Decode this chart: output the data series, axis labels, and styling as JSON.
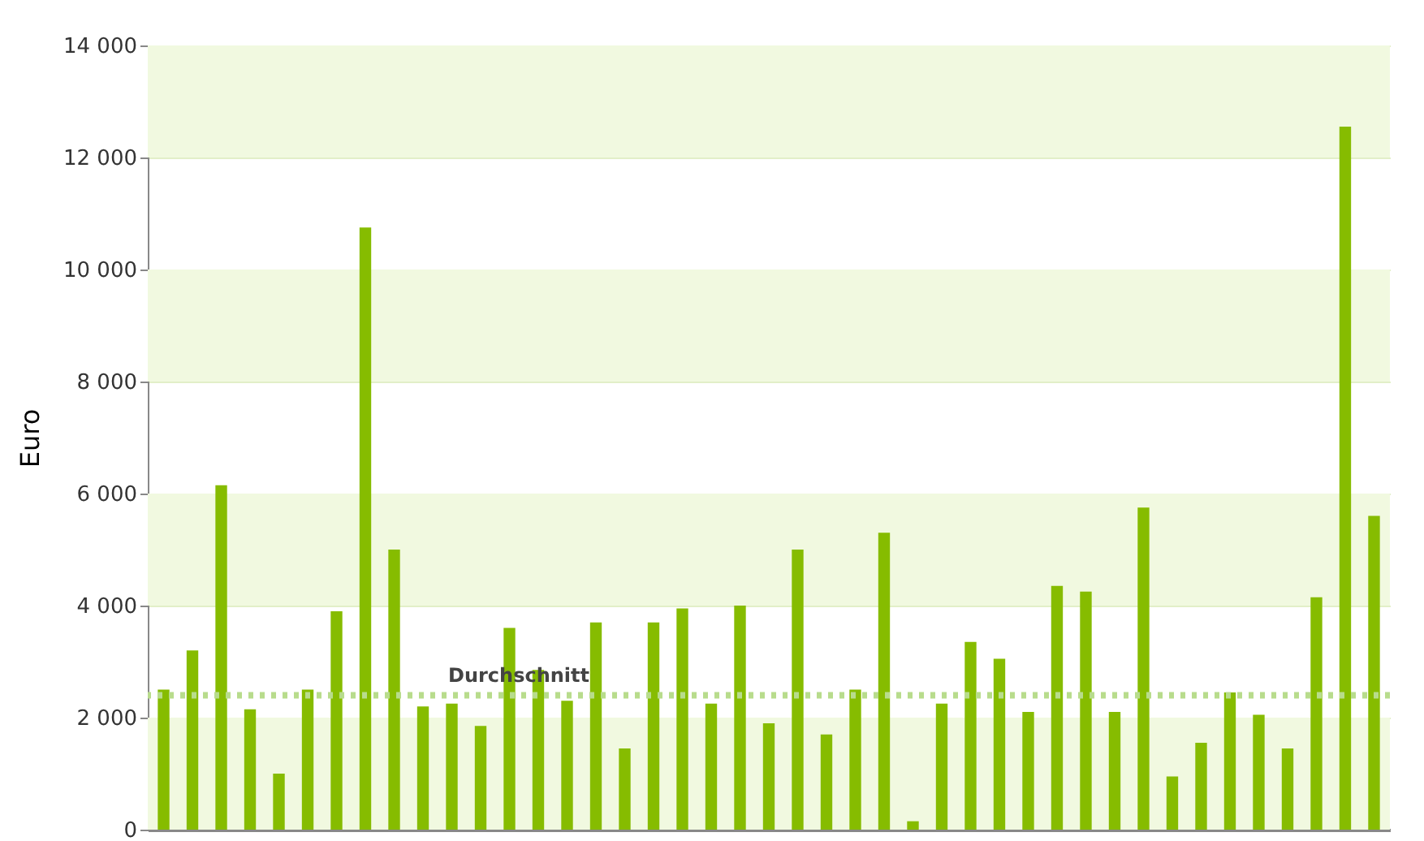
{
  "chart_data": {
    "type": "bar",
    "ylabel": "Euro",
    "categories": [
      null,
      null,
      null,
      null,
      null,
      null,
      null,
      null,
      null,
      null,
      null,
      null,
      null,
      null,
      null,
      null,
      null,
      null,
      null,
      null,
      null,
      null,
      null,
      null,
      null,
      null,
      null,
      null,
      null,
      null,
      null,
      null,
      null,
      null,
      null,
      null,
      null,
      null,
      null,
      null,
      null,
      null,
      null
    ],
    "values": [
      2500,
      3200,
      6150,
      2150,
      1000,
      2500,
      3900,
      10750,
      5000,
      2200,
      2250,
      1850,
      3600,
      2850,
      2300,
      3700,
      1450,
      3700,
      3950,
      2250,
      4000,
      1900,
      5000,
      1700,
      2500,
      5300,
      150,
      2250,
      3350,
      3050,
      2100,
      4350,
      4250,
      2100,
      5750,
      950,
      1550,
      2450,
      2050,
      1450,
      4150,
      12550,
      5600
    ],
    "color": "#86bc00",
    "ylim": [
      0,
      14000
    ],
    "yticks": [
      {
        "value": 0,
        "label": "0"
      },
      {
        "value": 2000,
        "label": "2 000"
      },
      {
        "value": 4000,
        "label": "4 000"
      },
      {
        "value": 6000,
        "label": "6 000"
      },
      {
        "value": 8000,
        "label": "8 000"
      },
      {
        "value": 10000,
        "label": "10 000"
      },
      {
        "value": 12000,
        "label": "12 000"
      },
      {
        "value": 14000,
        "label": "14 000"
      }
    ],
    "grid": true,
    "ref_lines": [
      {
        "axis": "y",
        "value": 2400,
        "label": "Durchschnitt",
        "color": "#b8dc8c",
        "line_style": "dotted"
      }
    ]
  }
}
